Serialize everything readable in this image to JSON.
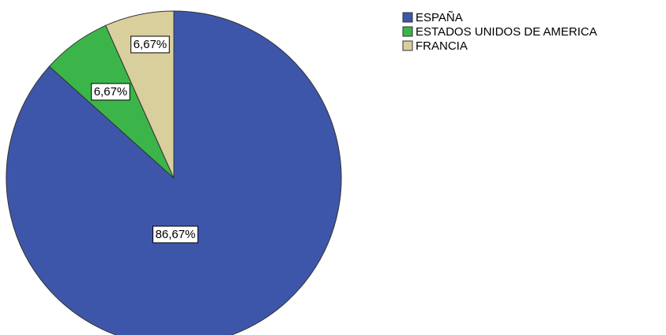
{
  "chart_data": {
    "type": "pie",
    "categories": [
      "ESPAÑA",
      "ESTADOS UNIDOS DE AMERICA",
      "FRANCIA"
    ],
    "values": [
      86.67,
      6.67,
      6.67
    ],
    "value_labels": [
      "86,67%",
      "6,67%",
      "6,67%"
    ],
    "colors": [
      "#3e56aa",
      "#3bb54a",
      "#d9cf9d"
    ],
    "legend": "right"
  }
}
